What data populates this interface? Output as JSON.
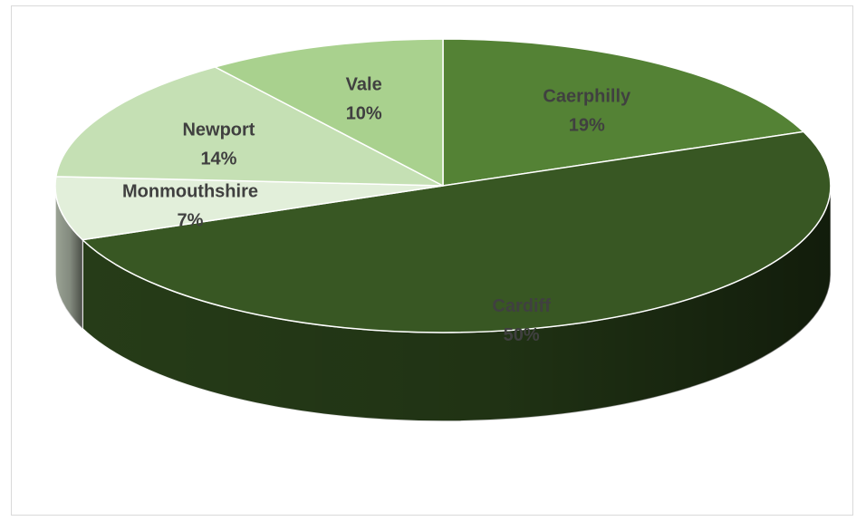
{
  "chart_data": {
    "type": "pie",
    "style": "3d",
    "title": "",
    "slices": [
      {
        "label": "Caerphilly",
        "value": 19,
        "value_label": "19%",
        "color": "#548235",
        "label_color": "#404040"
      },
      {
        "label": "Cardiff",
        "value": 50,
        "value_label": "50%",
        "color": "#385723",
        "label_color": "#404040"
      },
      {
        "label": "Monmouthshire",
        "value": 7,
        "value_label": "7%",
        "color": "#e2efda",
        "label_color": "#404040"
      },
      {
        "label": "Newport",
        "value": 14,
        "value_label": "14%",
        "color": "#c5e0b4",
        "label_color": "#404040"
      },
      {
        "label": "Vale",
        "value": 10,
        "value_label": "10%",
        "color": "#a9d18e",
        "label_color": "#404040"
      }
    ],
    "legend": "none",
    "data_labels": "category and percentage"
  }
}
